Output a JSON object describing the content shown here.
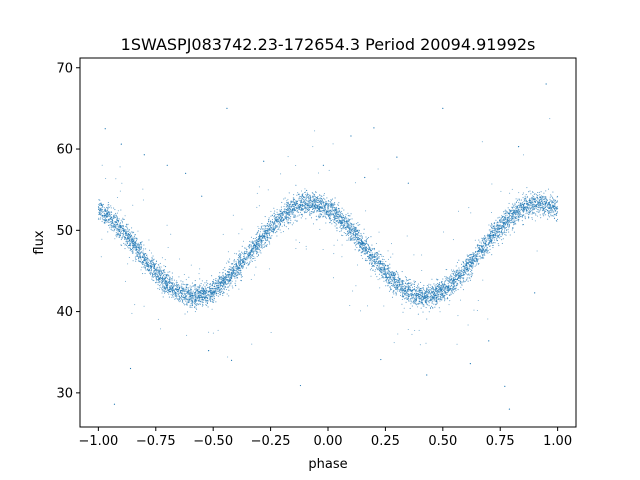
{
  "chart_data": {
    "type": "scatter",
    "title": "1SWASPJ083742.23-172654.3 Period 20094.91992s",
    "xlabel": "phase",
    "ylabel": "flux",
    "xlim": [
      -1.08,
      1.08
    ],
    "ylim": [
      25.8,
      71.2
    ],
    "grid": false,
    "legend": "none",
    "xticks": [
      -1.0,
      -0.75,
      -0.5,
      -0.25,
      0.0,
      0.25,
      0.5,
      0.75,
      1.0
    ],
    "xtick_labels": [
      "−1.00",
      "−0.75",
      "−0.50",
      "−0.25",
      "0.00",
      "0.25",
      "0.50",
      "0.75",
      "1.00"
    ],
    "yticks": [
      30,
      40,
      50,
      60,
      70
    ],
    "ytick_labels": [
      "30",
      "40",
      "50",
      "60",
      "70"
    ],
    "marker_color": "#1f77b4",
    "series": [
      {
        "model": "sinusoid",
        "x_range": [
          -1.0,
          1.0
        ],
        "mean": 47.6,
        "amplitude": 5.7,
        "period": 1.0,
        "phase_of_maximum": -0.08,
        "scatter": 0.7,
        "points": [
          [
            -1.0,
            52.6
          ],
          [
            -0.95,
            51.5
          ],
          [
            -0.9,
            49.6
          ],
          [
            -0.85,
            47.8
          ],
          [
            -0.8,
            46.0
          ],
          [
            -0.75,
            44.6
          ],
          [
            -0.7,
            43.2
          ],
          [
            -0.65,
            42.3
          ],
          [
            -0.6,
            41.9
          ],
          [
            -0.55,
            42.2
          ],
          [
            -0.5,
            43.2
          ],
          [
            -0.45,
            44.7
          ],
          [
            -0.4,
            46.4
          ],
          [
            -0.35,
            48.2
          ],
          [
            -0.3,
            50.0
          ],
          [
            -0.25,
            51.5
          ],
          [
            -0.2,
            52.6
          ],
          [
            -0.15,
            53.2
          ],
          [
            -0.1,
            53.3
          ],
          [
            -0.05,
            53.1
          ],
          [
            0.0,
            52.4
          ],
          [
            0.05,
            51.3
          ],
          [
            0.1,
            49.8
          ],
          [
            0.15,
            48.1
          ],
          [
            0.2,
            46.4
          ],
          [
            0.25,
            44.7
          ],
          [
            0.3,
            43.3
          ],
          [
            0.35,
            42.3
          ],
          [
            0.4,
            41.9
          ],
          [
            0.45,
            42.1
          ],
          [
            0.5,
            42.9
          ],
          [
            0.55,
            44.3
          ],
          [
            0.6,
            45.9
          ],
          [
            0.65,
            47.7
          ],
          [
            0.7,
            49.5
          ],
          [
            0.75,
            51.0
          ],
          [
            0.8,
            52.2
          ],
          [
            0.85,
            53.0
          ],
          [
            0.9,
            53.3
          ],
          [
            0.95,
            53.2
          ],
          [
            1.0,
            52.6
          ]
        ]
      }
    ],
    "outliers": [
      [
        -0.97,
        62.5
      ],
      [
        -0.9,
        60.6
      ],
      [
        -0.86,
        33.0
      ],
      [
        -0.8,
        59.3
      ],
      [
        -0.7,
        58.0
      ],
      [
        -0.62,
        57.0
      ],
      [
        -0.55,
        54.2
      ],
      [
        -0.52,
        35.2
      ],
      [
        -0.42,
        34.0
      ],
      [
        -0.28,
        58.5
      ],
      [
        -0.12,
        30.9
      ],
      [
        -0.02,
        58.0
      ],
      [
        0.1,
        61.6
      ],
      [
        0.16,
        56.5
      ],
      [
        0.23,
        34.1
      ],
      [
        0.3,
        59.0
      ],
      [
        0.35,
        55.8
      ],
      [
        0.43,
        32.2
      ],
      [
        0.5,
        65.0
      ],
      [
        0.62,
        33.6
      ],
      [
        0.7,
        36.4
      ],
      [
        0.77,
        30.8
      ],
      [
        0.83,
        60.3
      ],
      [
        0.9,
        42.3
      ],
      [
        0.95,
        68.0
      ],
      [
        0.79,
        28.0
      ],
      [
        -0.93,
        28.6
      ],
      [
        -0.44,
        65.0
      ],
      [
        0.2,
        62.6
      ]
    ]
  }
}
